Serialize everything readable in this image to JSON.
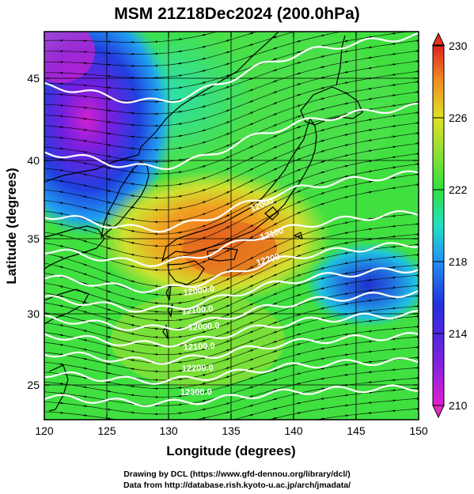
{
  "title": "MSM 21Z18Dec2024 (200.0hPa)",
  "xlabel": "Longitude (degrees)",
  "ylabel": "Latitude  (degrees)",
  "xticks": [
    "120",
    "125",
    "130",
    "135",
    "140",
    "145",
    "150"
  ],
  "yticks": [
    "25",
    "30",
    "35",
    "40",
    "45"
  ],
  "colorbar_ticks": [
    "210",
    "214",
    "218",
    "222",
    "226",
    "230"
  ],
  "contour_labels": [
    "12000",
    "12100",
    "12200",
    "12300",
    "12000.0",
    "12100.0",
    "12200.0",
    "12300.0"
  ],
  "footer": {
    "line1": "Drawing by DCL (https://www.gfd-dennou.org/library/dcl/)",
    "line2": "Data from http://database.rish.kyoto-u.ac.jp/arch/jmadata/"
  },
  "colors": {
    "cold_magenta": "#e020d0",
    "blue": "#2040e0",
    "cyan": "#20d0e0",
    "green": "#30e040",
    "yellow_green": "#c0e030",
    "orange": "#f09020",
    "red": "#e03020",
    "contour": "#ffffff",
    "coast": "#000000"
  }
}
